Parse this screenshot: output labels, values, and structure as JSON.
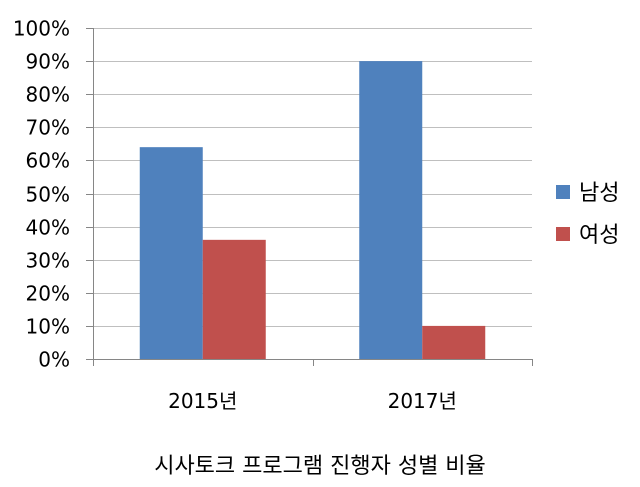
{
  "chart_data": {
    "type": "bar",
    "title": "",
    "xlabel": "",
    "ylabel": "",
    "categories": [
      "2015년",
      "2017년"
    ],
    "series": [
      {
        "name": "남성",
        "values": [
          64,
          90
        ],
        "color": "#4F81BD"
      },
      {
        "name": "여성",
        "values": [
          36,
          10
        ],
        "color": "#C0504D"
      }
    ],
    "ylim": [
      0,
      100
    ],
    "yticks": [
      0,
      10,
      20,
      30,
      40,
      50,
      60,
      70,
      80,
      90,
      100
    ],
    "ytick_labels": [
      "0%",
      "10%",
      "20%",
      "30%",
      "40%",
      "50%",
      "60%",
      "70%",
      "80%",
      "90%",
      "100%"
    ],
    "grid": true,
    "legend_position": "right"
  },
  "caption": "시사토크 프로그램 진행자 성별 비율"
}
